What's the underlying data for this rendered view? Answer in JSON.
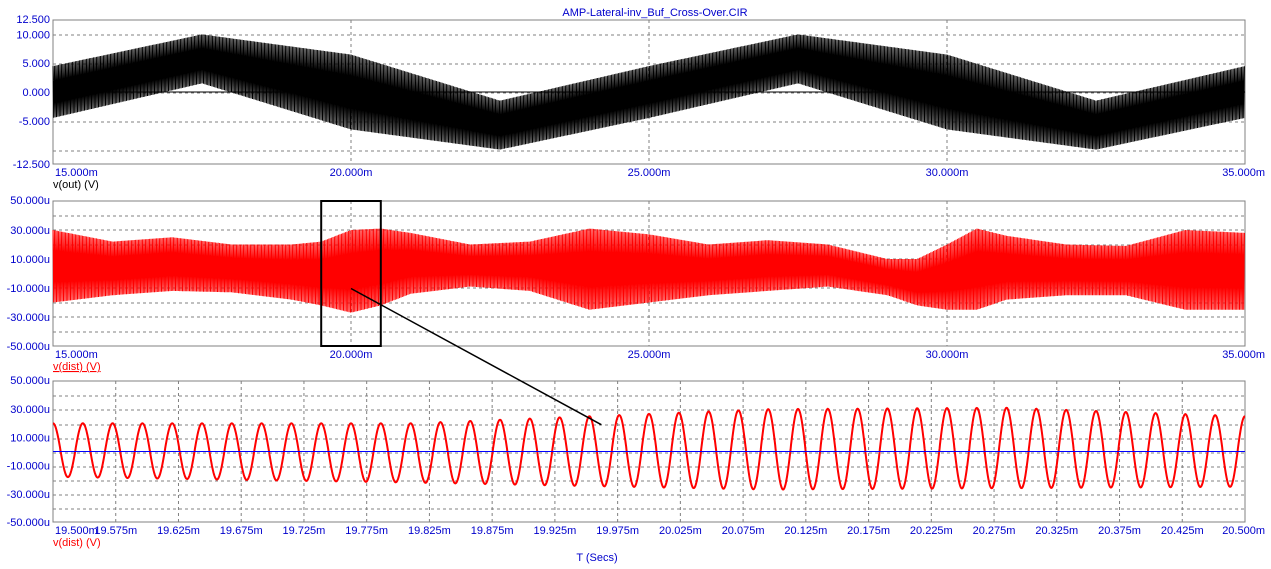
{
  "title": "AMP-Lateral-inv_Buf_Cross-Over.CIR",
  "xlabel": "T (Secs)",
  "colors": {
    "text": "#0000cc",
    "black": "#000000",
    "red": "#ff0000",
    "blue": "#0000ff",
    "grid": "#808080"
  },
  "chart_data": [
    {
      "type": "line",
      "ylabel": "v(out) (V)",
      "xlim": [
        0.015,
        0.035
      ],
      "ylim": [
        -12.5,
        12.5
      ],
      "x_tick_labels": [
        "15.000m",
        "20.000m",
        "25.000m",
        "30.000m",
        "35.000m"
      ],
      "y_tick_labels": [
        "12.500",
        "10.000",
        "5.000",
        "0.000",
        "-5.000",
        "-12.500"
      ],
      "series": [
        {
          "color": "#000000",
          "signal": "~100 Hz sine, approx. 6 V peak, with a high-frequency ripple of approx. 4 V amplitude; envelope peaks ~10 V, troughs ~-10 V",
          "envelope_upper": {
            "x": [
              0.015,
              0.0175,
              0.02,
              0.0225,
              0.025,
              0.0275,
              0.03,
              0.0325,
              0.035
            ],
            "y": [
              4.5,
              10.0,
              6.5,
              -1.5,
              4.5,
              10.0,
              6.5,
              -1.5,
              4.5
            ]
          },
          "envelope_lower": {
            "x": [
              0.015,
              0.0175,
              0.02,
              0.0225,
              0.025,
              0.0275,
              0.03,
              0.0325,
              0.035
            ],
            "y": [
              -4.5,
              1.5,
              -6.5,
              -10.0,
              -4.5,
              1.5,
              -6.5,
              -10.0,
              -4.5
            ]
          }
        },
        {
          "color": "#000000",
          "signal": "0 V reference line",
          "x": [
            0.015,
            0.035
          ],
          "y": [
            0,
            0
          ]
        }
      ]
    },
    {
      "type": "line",
      "ylabel": "v(dist) (V)",
      "xlim": [
        0.015,
        0.035
      ],
      "ylim": [
        -5e-05,
        5e-05
      ],
      "x_tick_labels": [
        "15.000m",
        "20.000m",
        "25.000m",
        "30.000m",
        "35.000m"
      ],
      "y_tick_labels": [
        "50.000u",
        "30.000u",
        "10.000u",
        "-10.000u",
        "-30.000u",
        "-50.000u"
      ],
      "series": [
        {
          "color": "#ff0000",
          "signal": "dense high-frequency oscillation; upper and lower envelope vary with time",
          "envelope_upper": {
            "x": [
              0.015,
              0.016,
              0.017,
              0.018,
              0.019,
              0.0195,
              0.02,
              0.0205,
              0.021,
              0.022,
              0.023,
              0.024,
              0.025,
              0.026,
              0.027,
              0.028,
              0.029,
              0.0295,
              0.03,
              0.0305,
              0.031,
              0.032,
              0.033,
              0.034,
              0.035
            ],
            "y": [
              3e-05,
              2.2e-05,
              2.5e-05,
              2e-05,
              2e-05,
              2.2e-05,
              3e-05,
              3.1e-05,
              2.8e-05,
              2e-05,
              2.2e-05,
              3.1e-05,
              2.7e-05,
              2e-05,
              2.3e-05,
              2e-05,
              1e-05,
              1e-05,
              2e-05,
              3.1e-05,
              2.6e-05,
              2e-05,
              1.9e-05,
              3e-05,
              2.8e-05
            ]
          },
          "envelope_lower": {
            "x": [
              0.015,
              0.016,
              0.017,
              0.018,
              0.019,
              0.0195,
              0.02,
              0.0205,
              0.021,
              0.022,
              0.023,
              0.024,
              0.025,
              0.026,
              0.027,
              0.028,
              0.029,
              0.0295,
              0.03,
              0.0305,
              0.031,
              0.032,
              0.033,
              0.034,
              0.035
            ],
            "y": [
              -2e-05,
              -1.5e-05,
              -1.2e-05,
              -1.3e-05,
              -1.8e-05,
              -2.2e-05,
              -2.7e-05,
              -2.2e-05,
              -1.4e-05,
              -9e-06,
              -1.2e-05,
              -2.5e-05,
              -2e-05,
              -1.5e-05,
              -1.2e-05,
              -9e-06,
              -1.5e-05,
              -2.2e-05,
              -2.5e-05,
              -2.5e-05,
              -1.8e-05,
              -1.5e-05,
              -1.5e-05,
              -2.5e-05,
              -2.5e-05
            ]
          }
        }
      ]
    },
    {
      "type": "line",
      "ylabel": "v(dist) (V)",
      "xlim": [
        0.0195,
        0.0205
      ],
      "ylim": [
        -5e-05,
        5e-05
      ],
      "x_tick_labels": [
        "19.500m",
        "19.575m",
        "19.625m",
        "19.675m",
        "19.725m",
        "19.775m",
        "19.825m",
        "19.875m",
        "19.925m",
        "19.975m",
        "20.025m",
        "20.075m",
        "20.125m",
        "20.175m",
        "20.225m",
        "20.275m",
        "20.325m",
        "20.375m",
        "20.425m",
        "20.500m"
      ],
      "y_tick_labels": [
        "50.000u",
        "30.000u",
        "10.000u",
        "-10.000u",
        "-30.000u",
        "-50.000u"
      ],
      "series": [
        {
          "color": "#ff0000",
          "signal": "sinusoid, about 40 cycles across the window (~40 kHz), centred near 0",
          "cycles": 40,
          "peaks": {
            "x": [
              0.0195,
              0.0198,
              0.0201,
              0.0203,
              0.0205
            ],
            "y": [
              2e-05,
              2e-05,
              3e-05,
              3.1e-05,
              2.5e-05
            ]
          },
          "troughs": {
            "x": [
              0.0195,
              0.0198,
              0.0201,
              0.0203,
              0.0205
            ],
            "y": [
              -1.8e-05,
              -2.2e-05,
              -2.7e-05,
              -2.6e-05,
              -2.5e-05
            ]
          }
        },
        {
          "color": "#0000ff",
          "signal": "0 V reference line",
          "x": [
            0.0195,
            0.0205
          ],
          "y": [
            0,
            0
          ]
        }
      ]
    }
  ],
  "zoom_callout": {
    "x_range": [
      0.0195,
      0.0205
    ],
    "pointer_target": {
      "x": 0.01996,
      "y": 1.9e-05
    }
  }
}
